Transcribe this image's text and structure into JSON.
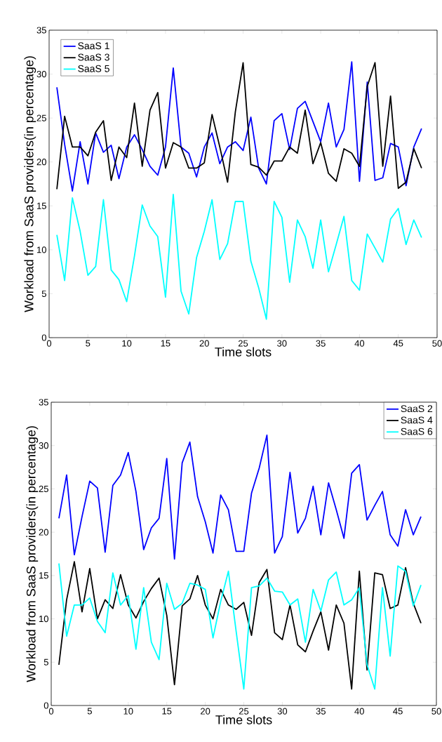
{
  "chart_data": [
    {
      "type": "line",
      "xlabel": "Time slots",
      "ylabel": "Workload from SaaS providers(in percentage)",
      "x": [
        1,
        2,
        3,
        4,
        5,
        6,
        7,
        8,
        9,
        10,
        11,
        12,
        13,
        14,
        15,
        16,
        17,
        18,
        19,
        20,
        21,
        22,
        23,
        24,
        25,
        26,
        27,
        28,
        29,
        30,
        31,
        32,
        33,
        34,
        35,
        36,
        37,
        38,
        39,
        40,
        41,
        42,
        43,
        44,
        45,
        46,
        47,
        48
      ],
      "series": [
        {
          "name": "SaaS 1",
          "color": "#0000ff",
          "values": [
            28.5,
            22,
            16.7,
            22.3,
            17.5,
            23.3,
            21.1,
            21.9,
            18.1,
            21.7,
            23.1,
            21.4,
            19.5,
            18.5,
            21.7,
            30.7,
            21.7,
            21.0,
            18.3,
            21.7,
            23.3,
            19.8,
            21.7,
            22.3,
            21.3,
            25.1,
            19.3,
            17.5,
            24.7,
            25.5,
            21.4,
            26.1,
            26.9,
            24.6,
            22.3,
            26.7,
            21.7,
            23.7,
            31.4,
            17.8,
            29.1,
            17.9,
            18.2,
            22.1,
            21.7,
            17.3,
            21.7,
            23.8
          ]
        },
        {
          "name": "SaaS 3",
          "color": "#000000",
          "values": [
            16.9,
            25.2,
            21.7,
            21.7,
            20.7,
            23.4,
            24.7,
            17.9,
            21.7,
            20.5,
            26.7,
            19.5,
            25.9,
            27.9,
            19.3,
            22.2,
            21.7,
            19.3,
            19.3,
            19.9,
            25.4,
            21.7,
            17.7,
            25.7,
            31.3,
            19.7,
            19.4,
            18.5,
            20.1,
            20.1,
            21.7,
            21.0,
            25.9,
            19.8,
            22.2,
            18.7,
            17.8,
            21.5,
            21.0,
            19.5,
            28.6,
            31.3,
            19.5,
            27.5,
            17.0,
            17.7,
            21.5,
            19.3
          ]
        },
        {
          "name": "SaaS 5",
          "color": "#00ffff",
          "values": [
            11.7,
            6.5,
            15.9,
            12.1,
            7.1,
            8.1,
            15.7,
            7.7,
            6.6,
            4.1,
            9.3,
            15.1,
            12.7,
            11.5,
            4.6,
            16.3,
            5.3,
            2.7,
            9.1,
            12.1,
            15.7,
            8.9,
            10.7,
            15.5,
            15.5,
            8.7,
            5.7,
            2.1,
            15.5,
            13.7,
            6.3,
            13.4,
            11.5,
            7.9,
            13.4,
            7.5,
            10.6,
            13.8,
            6.5,
            5.4,
            11.8,
            10.2,
            8.6,
            13.5,
            14.7,
            10.6,
            13.4,
            11.4
          ]
        }
      ],
      "xlim": [
        0,
        50
      ],
      "ylim": [
        0,
        35
      ],
      "xticks": [
        0,
        5,
        10,
        15,
        20,
        25,
        30,
        35,
        40,
        45,
        50
      ],
      "yticks": [
        0,
        5,
        10,
        15,
        20,
        25,
        30,
        35
      ],
      "legend": "top left"
    },
    {
      "type": "line",
      "xlabel": "Time slots",
      "ylabel": "Workload from SaaS providers(in percentage)",
      "x": [
        1,
        2,
        3,
        4,
        5,
        6,
        7,
        8,
        9,
        10,
        11,
        12,
        13,
        14,
        15,
        16,
        17,
        18,
        19,
        20,
        21,
        22,
        23,
        24,
        25,
        26,
        27,
        28,
        29,
        30,
        31,
        32,
        33,
        34,
        35,
        36,
        37,
        38,
        39,
        40,
        41,
        42,
        43,
        44,
        45,
        46,
        47,
        48
      ],
      "series": [
        {
          "name": "SaaS 2",
          "color": "#0000ff",
          "values": [
            21.6,
            26.6,
            17.4,
            21.8,
            25.9,
            25.1,
            17.7,
            25.4,
            26.6,
            29.2,
            24.7,
            18.0,
            20.5,
            21.6,
            28.5,
            16.9,
            28.0,
            30.4,
            24.1,
            21.2,
            17.6,
            24.3,
            22.6,
            17.8,
            17.8,
            24.5,
            27.4,
            31.2,
            17.6,
            19.5,
            26.9,
            19.9,
            21.6,
            25.3,
            19.7,
            25.7,
            22.6,
            19.3,
            26.8,
            27.8,
            21.4,
            23.1,
            24.7,
            19.7,
            18.4,
            22.6,
            19.7,
            21.8
          ]
        },
        {
          "name": "SaaS 4",
          "color": "#000000",
          "values": [
            4.7,
            12.2,
            16.6,
            10.8,
            15.8,
            10.0,
            12.2,
            11.2,
            15.1,
            11.6,
            10.1,
            12.0,
            13.5,
            14.7,
            10.4,
            2.4,
            11.5,
            12.3,
            15.0,
            11.6,
            10.0,
            13.4,
            11.6,
            11.1,
            11.9,
            8.1,
            14.2,
            15.7,
            8.4,
            7.6,
            11.6,
            7.0,
            6.2,
            8.6,
            10.8,
            6.4,
            11.6,
            9.5,
            1.9,
            15.5,
            4.1,
            15.3,
            15.1,
            11.2,
            11.6,
            15.9,
            11.8,
            9.5
          ]
        },
        {
          "name": "SaaS 6",
          "color": "#00ffff",
          "values": [
            16.4,
            8.0,
            11.6,
            11.6,
            12.4,
            9.7,
            8.4,
            15.3,
            11.6,
            12.7,
            6.5,
            13.6,
            7.3,
            5.3,
            14.1,
            11.1,
            11.8,
            14.1,
            13.9,
            13.4,
            7.8,
            12.0,
            15.5,
            8.6,
            1.9,
            13.6,
            13.8,
            14.7,
            13.2,
            13.1,
            11.6,
            12.3,
            7.3,
            13.4,
            10.9,
            14.5,
            15.4,
            11.6,
            12.2,
            13.6,
            4.7,
            1.9,
            13.6,
            5.7,
            16.1,
            15.5,
            11.5,
            13.9
          ]
        }
      ],
      "xlim": [
        0,
        50
      ],
      "ylim": [
        0,
        35
      ],
      "xticks": [
        0,
        5,
        10,
        15,
        20,
        25,
        30,
        35,
        40,
        45,
        50
      ],
      "yticks": [
        0,
        5,
        10,
        15,
        20,
        25,
        30,
        35
      ],
      "legend": "top right"
    }
  ]
}
